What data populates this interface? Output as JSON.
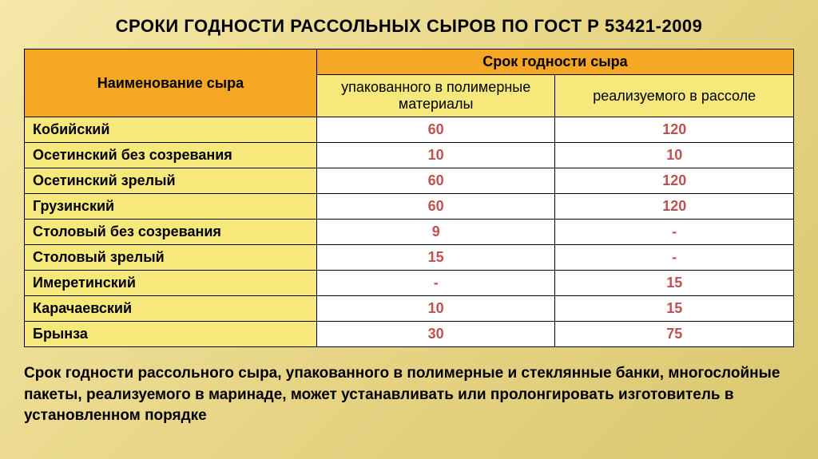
{
  "title": "СРОКИ ГОДНОСТИ РАССОЛЬНЫХ СЫРОВ ПО ГОСТ Р 53421-2009",
  "table": {
    "col1_header": "Наименование сыра",
    "col2_header": "Срок годности сыра",
    "sub1_header": "упакованного в полимерные материалы",
    "sub2_header": "реализуемого в рассоле",
    "rows": [
      {
        "name": "Кобийский",
        "poly": "60",
        "brine": "120"
      },
      {
        "name": "Осетинский без созревания",
        "poly": "10",
        "brine": "10"
      },
      {
        "name": "Осетинский зрелый",
        "poly": "60",
        "brine": "120"
      },
      {
        "name": "Грузинский",
        "poly": "60",
        "brine": "120"
      },
      {
        "name": "Столовый без созревания",
        "poly": "9",
        "brine": "-"
      },
      {
        "name": "Столовый зрелый",
        "poly": "15",
        "brine": "-"
      },
      {
        "name": "Имеретинский",
        "poly": "-",
        "brine": "15"
      },
      {
        "name": "Карачаевский",
        "poly": "10",
        "brine": "15"
      },
      {
        "name": "Брынза",
        "poly": "30",
        "brine": "75"
      }
    ]
  },
  "footnote": "Срок годности рассольного сыра, упакованного в полимерные и стеклянные банки, многослойные пакеты, реализуемого в маринаде, может устанавливать или пролонгировать изготовитель в установленном порядке",
  "styling": {
    "header_main_bg": "#f5a623",
    "header_sub_bg": "#f7e87c",
    "name_cell_bg": "#f7e87c",
    "value_color": "#c0504d",
    "background_gradient": [
      "#f5e8a8",
      "#e8d687",
      "#d9c770"
    ],
    "title_fontsize": 22,
    "cell_fontsize": 18,
    "footnote_fontsize": 19
  }
}
